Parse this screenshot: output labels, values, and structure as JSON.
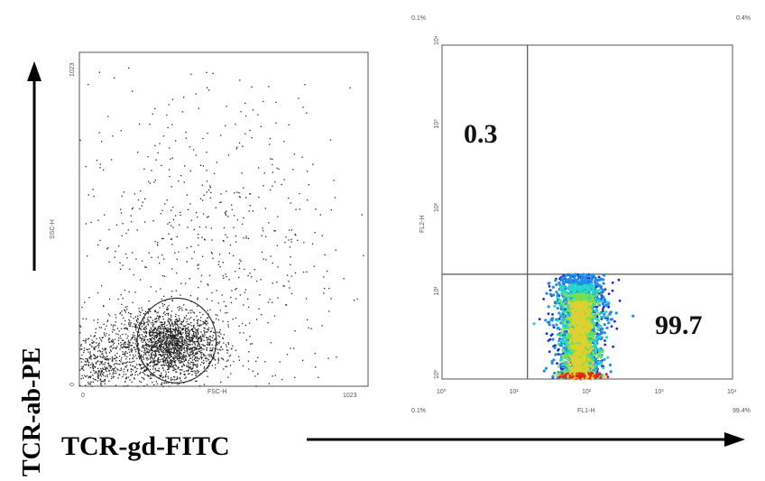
{
  "axes": {
    "outer_y_label": "TCR-ab-PE",
    "outer_x_label": "TCR-gd-FITC"
  },
  "chart_data": [
    {
      "type": "scatter",
      "title": "",
      "xlabel": "FSC-H",
      "ylabel": "SSC-H",
      "xlim": [
        0,
        1023
      ],
      "ylim": [
        0,
        1023
      ],
      "x_ticks": [
        "0",
        "1023"
      ],
      "y_ticks": [
        "0",
        "1023"
      ],
      "grid": false,
      "gate": {
        "shape": "ellipse",
        "center": [
          345,
          140
        ],
        "radii": [
          140,
          130
        ]
      },
      "clusters": [
        {
          "name": "",
          "center": [
            330,
            130
          ],
          "spread": [
            75,
            45
          ],
          "count": 1400
        },
        {
          "name": "",
          "center": [
            230,
            110
          ],
          "spread": [
            140,
            75
          ],
          "count": 900
        },
        {
          "name": "",
          "center": [
            60,
            70
          ],
          "spread": [
            40,
            40
          ],
          "count": 220
        },
        {
          "name": "",
          "center": [
            450,
            420
          ],
          "spread": [
            260,
            260
          ],
          "count": 650
        }
      ],
      "point_color": "#222222"
    },
    {
      "type": "scatter",
      "title": "",
      "xlabel": "FL1-H",
      "ylabel": "FL2-H",
      "xscale": "log",
      "yscale": "log",
      "xlim": [
        1,
        10000
      ],
      "ylim": [
        1,
        10000
      ],
      "x_ticks": [
        "10⁰",
        "10¹",
        "10²",
        "10³",
        "10⁴"
      ],
      "y_ticks": [
        "10⁰",
        "10¹",
        "10²",
        "10³",
        "10⁴"
      ],
      "grid": false,
      "quadrant_dividers": {
        "x": 15,
        "y": 18
      },
      "corner_labels": {
        "top_left": "0.1%",
        "top_right": "0.4%",
        "bottom_left": "0.1%",
        "bottom_right": "99.4%"
      },
      "quadrant_values": [
        {
          "quadrant": "upper-left",
          "value": "0.3"
        },
        {
          "quadrant": "lower-right",
          "value": "99.7"
        }
      ],
      "population": {
        "center_x": 80,
        "spread_x_decades": 0.17,
        "y_range": [
          1,
          18
        ]
      },
      "density_colors": [
        "#1a2bd8",
        "#1f8fe8",
        "#27d8c8",
        "#7be04a",
        "#e0d030",
        "#e02818"
      ]
    }
  ]
}
